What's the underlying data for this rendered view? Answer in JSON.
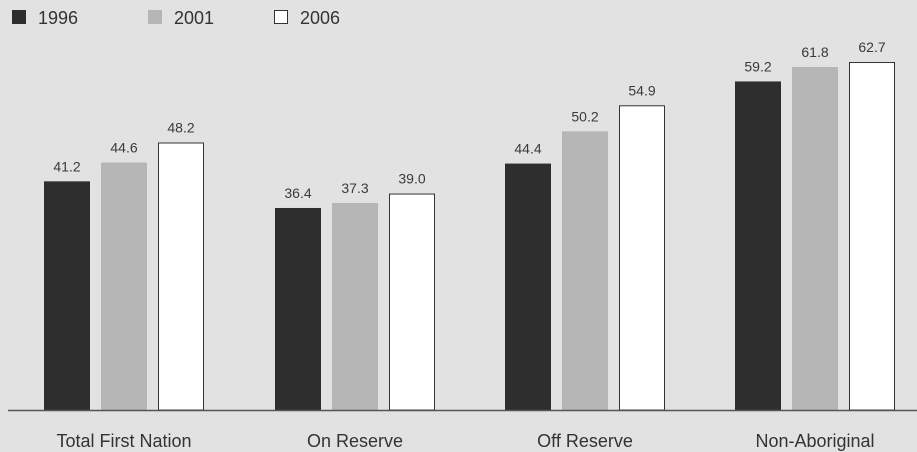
{
  "chart_data": {
    "type": "bar",
    "categories": [
      "Total First Nation",
      "On Reserve",
      "Off Reserve",
      "Non-Aboriginal"
    ],
    "series": [
      {
        "name": "1996",
        "values": [
          41.2,
          36.4,
          44.4,
          59.2
        ],
        "color": "#2e2e2e",
        "stroke": "#2e2e2e"
      },
      {
        "name": "2001",
        "values": [
          44.6,
          37.3,
          50.2,
          61.8
        ],
        "color": "#b6b6b6",
        "stroke": "#b6b6b6"
      },
      {
        "name": "2006",
        "values": [
          48.2,
          39.0,
          54.9,
          62.7
        ],
        "color": "#ffffff",
        "stroke": "#333333"
      }
    ],
    "title": "",
    "xlabel": "",
    "ylabel": "",
    "ylim": [
      0,
      70
    ],
    "grid": false,
    "legend": "top-left",
    "data_labels": true
  }
}
